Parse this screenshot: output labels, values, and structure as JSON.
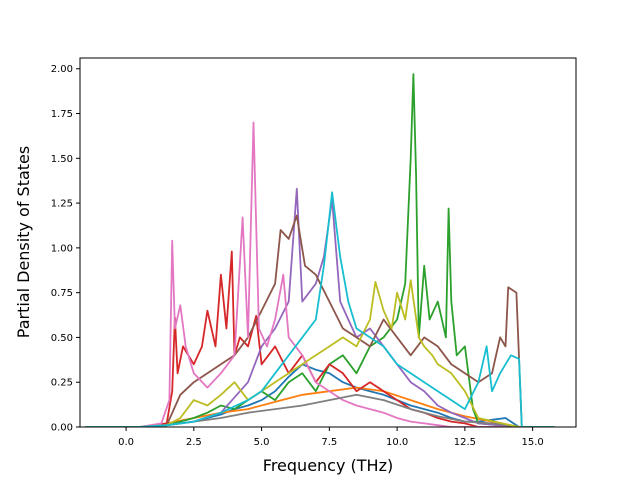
{
  "chart_data": {
    "type": "line",
    "title": "",
    "xlabel": "Frequency (THz)",
    "ylabel": "Partial Density of States",
    "xlim": [
      -1.7,
      16.6
    ],
    "ylim": [
      0.0,
      2.06
    ],
    "xticks": [
      "0.0",
      "2.5",
      "5.0",
      "7.5",
      "10.0",
      "12.5",
      "15.0"
    ],
    "yticks": [
      "0.00",
      "0.25",
      "0.50",
      "0.75",
      "1.00",
      "1.25",
      "1.50",
      "1.75",
      "2.00"
    ],
    "grid": false,
    "legend": "none",
    "series": [
      {
        "color": "#1f77b4",
        "x": [
          -1.5,
          0.5,
          1.5,
          2.0,
          2.5,
          3.0,
          3.5,
          4.0,
          4.5,
          5.0,
          5.5,
          6.0,
          6.5,
          7.0,
          7.5,
          8.0,
          8.5,
          9.0,
          9.5,
          10.0,
          10.5,
          11.0,
          11.5,
          12.0,
          12.5,
          13.0,
          13.5,
          14.0,
          14.5,
          15.8
        ],
        "y": [
          0.0,
          0.0,
          0.01,
          0.02,
          0.03,
          0.05,
          0.07,
          0.1,
          0.12,
          0.15,
          0.2,
          0.28,
          0.35,
          0.32,
          0.3,
          0.25,
          0.22,
          0.2,
          0.18,
          0.15,
          0.12,
          0.1,
          0.08,
          0.05,
          0.03,
          0.03,
          0.04,
          0.05,
          0.0,
          0.0
        ]
      },
      {
        "color": "#ff7f0e",
        "x": [
          -1.5,
          0.5,
          1.5,
          2.5,
          3.5,
          4.5,
          5.5,
          6.5,
          7.5,
          8.5,
          9.5,
          10.5,
          11.5,
          12.5,
          13.5,
          14.5,
          15.8
        ],
        "y": [
          0.0,
          0.0,
          0.02,
          0.05,
          0.08,
          0.1,
          0.14,
          0.18,
          0.2,
          0.22,
          0.2,
          0.15,
          0.1,
          0.06,
          0.03,
          0.0,
          0.0
        ]
      },
      {
        "color": "#2ca02c",
        "x": [
          -1.5,
          0.5,
          1.5,
          2.0,
          2.5,
          3.0,
          3.5,
          4.0,
          4.5,
          5.0,
          5.5,
          6.0,
          6.5,
          7.0,
          7.5,
          8.0,
          8.5,
          9.0,
          9.5,
          10.0,
          10.3,
          10.5,
          10.6,
          10.7,
          10.8,
          11.0,
          11.2,
          11.5,
          11.8,
          11.9,
          12.0,
          12.2,
          12.5,
          12.8,
          13.0,
          14.5,
          15.8
        ],
        "y": [
          0.0,
          0.0,
          0.01,
          0.03,
          0.05,
          0.08,
          0.12,
          0.1,
          0.15,
          0.2,
          0.15,
          0.25,
          0.3,
          0.2,
          0.35,
          0.4,
          0.3,
          0.45,
          0.5,
          0.6,
          0.8,
          1.5,
          1.97,
          1.4,
          0.5,
          0.9,
          0.6,
          0.7,
          0.5,
          1.22,
          0.7,
          0.4,
          0.45,
          0.1,
          0.02,
          0.0,
          0.0
        ]
      },
      {
        "color": "#d62728",
        "x": [
          -1.5,
          0.5,
          1.5,
          1.7,
          1.8,
          1.9,
          2.1,
          2.5,
          2.8,
          3.0,
          3.3,
          3.5,
          3.7,
          3.9,
          4.0,
          4.2,
          4.5,
          4.8,
          5.0,
          5.5,
          6.0,
          6.5,
          7.0,
          7.5,
          8.0,
          8.5,
          9.0,
          9.5,
          10.0,
          10.5,
          11.0,
          11.5,
          12.0,
          12.5,
          13.0,
          14.5,
          15.8
        ],
        "y": [
          0.0,
          0.0,
          0.02,
          0.2,
          0.61,
          0.3,
          0.45,
          0.35,
          0.45,
          0.65,
          0.45,
          0.85,
          0.55,
          0.98,
          0.4,
          0.5,
          0.45,
          0.62,
          0.35,
          0.45,
          0.3,
          0.4,
          0.25,
          0.35,
          0.3,
          0.2,
          0.25,
          0.2,
          0.15,
          0.1,
          0.08,
          0.05,
          0.03,
          0.02,
          0.0,
          0.0,
          0.0
        ]
      },
      {
        "color": "#9467bd",
        "x": [
          -1.5,
          0.5,
          1.5,
          2.5,
          3.5,
          4.5,
          5.0,
          5.5,
          6.0,
          6.3,
          6.5,
          7.0,
          7.3,
          7.6,
          7.9,
          8.2,
          8.5,
          9.0,
          9.5,
          10.0,
          10.5,
          11.0,
          11.5,
          12.0,
          12.5,
          13.0,
          14.5,
          15.8
        ],
        "y": [
          0.0,
          0.0,
          0.01,
          0.03,
          0.08,
          0.25,
          0.45,
          0.55,
          0.7,
          1.33,
          0.7,
          0.8,
          0.95,
          1.27,
          0.7,
          0.6,
          0.5,
          0.55,
          0.45,
          0.35,
          0.25,
          0.2,
          0.12,
          0.08,
          0.05,
          0.02,
          0.0,
          0.0
        ]
      },
      {
        "color": "#8c564b",
        "x": [
          -1.5,
          0.5,
          1.5,
          2.0,
          2.5,
          3.0,
          3.5,
          4.0,
          4.5,
          5.0,
          5.5,
          5.7,
          6.0,
          6.3,
          6.6,
          7.0,
          7.5,
          8.0,
          8.5,
          9.0,
          9.5,
          10.0,
          10.5,
          11.0,
          11.5,
          12.0,
          12.5,
          13.0,
          13.5,
          13.8,
          14.0,
          14.1,
          14.3,
          14.4,
          14.6,
          15.8
        ],
        "y": [
          0.0,
          0.0,
          0.01,
          0.18,
          0.25,
          0.3,
          0.35,
          0.4,
          0.5,
          0.65,
          0.8,
          1.1,
          1.05,
          1.18,
          0.9,
          0.85,
          0.7,
          0.55,
          0.5,
          0.45,
          0.6,
          0.5,
          0.4,
          0.5,
          0.45,
          0.35,
          0.3,
          0.25,
          0.3,
          0.5,
          0.45,
          0.78,
          0.76,
          0.75,
          0.0,
          0.0
        ]
      },
      {
        "color": "#e377c2",
        "x": [
          -1.5,
          0.5,
          1.3,
          1.6,
          1.7,
          1.8,
          2.0,
          2.2,
          2.5,
          3.0,
          3.5,
          4.0,
          4.3,
          4.5,
          4.7,
          4.9,
          5.2,
          5.5,
          5.8,
          6.0,
          6.5,
          7.0,
          7.5,
          8.0,
          8.5,
          9.0,
          9.5,
          10.0,
          10.5,
          11.0,
          11.5,
          12.0,
          12.5,
          14.5,
          15.8
        ],
        "y": [
          0.0,
          0.0,
          0.02,
          0.15,
          1.04,
          0.55,
          0.68,
          0.45,
          0.3,
          0.22,
          0.3,
          0.4,
          1.17,
          0.5,
          1.7,
          0.55,
          0.45,
          0.6,
          0.85,
          0.5,
          0.4,
          0.25,
          0.2,
          0.15,
          0.12,
          0.1,
          0.08,
          0.05,
          0.03,
          0.02,
          0.01,
          0.0,
          0.0,
          0.0,
          0.0
        ]
      },
      {
        "color": "#7f7f7f",
        "x": [
          -1.5,
          0.5,
          1.5,
          2.5,
          3.5,
          4.5,
          5.5,
          6.5,
          7.5,
          8.5,
          9.5,
          10.5,
          11.5,
          12.5,
          13.5,
          14.5,
          15.8
        ],
        "y": [
          0.0,
          0.0,
          0.01,
          0.03,
          0.05,
          0.08,
          0.1,
          0.12,
          0.15,
          0.18,
          0.15,
          0.1,
          0.06,
          0.03,
          0.02,
          0.0,
          0.0
        ]
      },
      {
        "color": "#bcbd22",
        "x": [
          -1.5,
          0.5,
          1.5,
          2.0,
          2.5,
          3.0,
          3.5,
          4.0,
          4.5,
          5.0,
          5.5,
          6.0,
          6.5,
          7.0,
          7.5,
          8.0,
          8.5,
          9.0,
          9.2,
          9.5,
          9.8,
          10.0,
          10.3,
          10.5,
          10.8,
          11.0,
          11.3,
          11.5,
          12.0,
          12.5,
          13.0,
          14.5,
          15.8
        ],
        "y": [
          0.0,
          0.0,
          0.01,
          0.05,
          0.15,
          0.12,
          0.18,
          0.25,
          0.15,
          0.2,
          0.25,
          0.3,
          0.35,
          0.4,
          0.45,
          0.5,
          0.45,
          0.6,
          0.81,
          0.65,
          0.55,
          0.75,
          0.6,
          0.82,
          0.5,
          0.45,
          0.4,
          0.35,
          0.3,
          0.2,
          0.05,
          0.0,
          0.0
        ]
      },
      {
        "color": "#17becf",
        "x": [
          -1.5,
          0.5,
          1.5,
          2.5,
          3.5,
          4.5,
          5.0,
          5.5,
          6.0,
          6.5,
          7.0,
          7.3,
          7.6,
          7.9,
          8.2,
          8.5,
          9.0,
          9.5,
          10.0,
          10.5,
          11.0,
          11.5,
          12.0,
          12.5,
          13.0,
          13.3,
          13.5,
          13.8,
          14.0,
          14.2,
          14.5,
          14.6,
          15.8
        ],
        "y": [
          0.0,
          0.0,
          0.01,
          0.03,
          0.08,
          0.15,
          0.2,
          0.3,
          0.4,
          0.5,
          0.6,
          0.9,
          1.31,
          0.95,
          0.7,
          0.55,
          0.5,
          0.45,
          0.35,
          0.3,
          0.25,
          0.2,
          0.15,
          0.1,
          0.25,
          0.45,
          0.2,
          0.3,
          0.35,
          0.4,
          0.38,
          0.0,
          0.0
        ]
      }
    ]
  }
}
